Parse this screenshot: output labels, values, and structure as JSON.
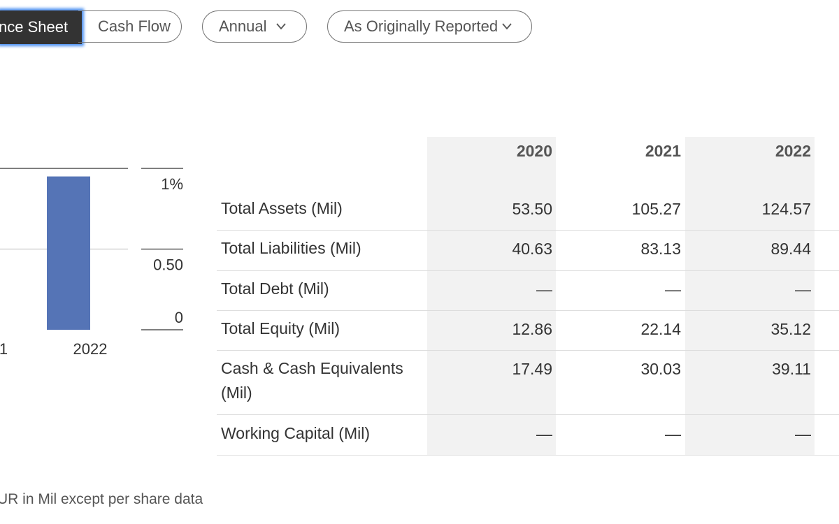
{
  "tabs": {
    "active": "nce Sheet",
    "other": "Cash Flow"
  },
  "filters": {
    "period": "Annual",
    "basis": "As Originally Reported"
  },
  "chart_data": {
    "type": "bar",
    "categories": [
      "1",
      "2022"
    ],
    "values": [
      null,
      0.95
    ],
    "color": "#5574b6",
    "ylim": [
      0,
      1
    ],
    "yticks": [
      {
        "value": 1,
        "label": "1%"
      },
      {
        "value": 0.5,
        "label": "0.50"
      },
      0
    ],
    "grid": true
  },
  "table": {
    "columns": [
      "2020",
      "2021",
      "2022"
    ],
    "rows": [
      [
        "Total Assets (Mil)",
        "53.50",
        "105.27",
        "124.57"
      ],
      [
        "Total Liabilities (Mil)",
        "40.63",
        "83.13",
        "89.44"
      ],
      [
        "Total Debt (Mil)",
        "—",
        "—",
        "—"
      ],
      [
        "Total Equity (Mil)",
        "12.86",
        "22.14",
        "35.12"
      ],
      [
        "Cash & Cash Equivalents (Mil)",
        "17.49",
        "30.03",
        "39.11"
      ],
      [
        "Working Capital (Mil)",
        "—",
        "—",
        "—"
      ]
    ]
  },
  "footnote": "UR in Mil except per share data"
}
